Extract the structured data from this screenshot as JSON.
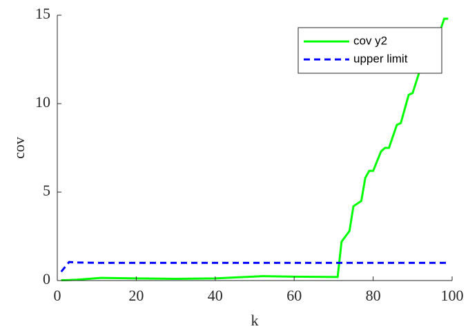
{
  "chart_data": {
    "type": "line",
    "x_label": "k",
    "y_label": "cov",
    "x": [
      1,
      3,
      5,
      11,
      20,
      30,
      40,
      52,
      60,
      71,
      72,
      74,
      75,
      77,
      78,
      79,
      80,
      82,
      83,
      84,
      86,
      87,
      89,
      90,
      92,
      93,
      95,
      96,
      98,
      99
    ],
    "series": [
      {
        "name": "cov y2",
        "color": "#00ff00",
        "dash": false,
        "values": [
          0.02,
          0.03,
          0.05,
          0.15,
          0.12,
          0.1,
          0.12,
          0.25,
          0.22,
          0.2,
          2.2,
          2.8,
          4.2,
          4.5,
          5.8,
          6.2,
          6.2,
          7.3,
          7.5,
          7.5,
          8.8,
          8.9,
          10.5,
          10.6,
          12,
          12.2,
          13.3,
          13.5,
          14.8,
          14.8
        ]
      },
      {
        "name": "upper limit",
        "color": "#0000ff",
        "dash": true,
        "values": [
          0.5,
          1.05,
          1.02,
          1,
          1,
          1,
          1,
          1,
          1,
          1,
          1,
          1,
          1,
          1,
          1,
          1,
          1,
          1,
          1,
          1,
          1,
          1,
          1,
          1,
          1,
          1,
          1,
          1,
          1,
          1
        ]
      }
    ],
    "xlim": [
      0,
      100
    ],
    "xticks": [
      0,
      20,
      40,
      60,
      80,
      100
    ],
    "ylim": [
      0,
      15
    ],
    "yticks": [
      0,
      5,
      10,
      15
    ],
    "legend": "upper-right"
  }
}
